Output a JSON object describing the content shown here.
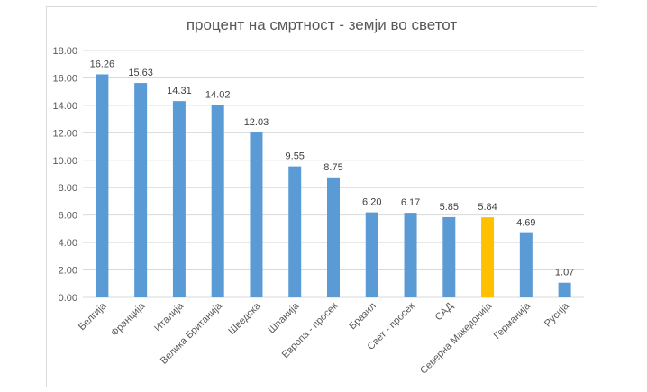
{
  "chart_data": {
    "type": "bar",
    "title": "процент  на смртност - земји во светот",
    "xlabel": "",
    "ylabel": "",
    "ylim": [
      0,
      18
    ],
    "ytick_step": 2,
    "ytick_labels": [
      "0.00",
      "2.00",
      "4.00",
      "6.00",
      "8.00",
      "10.00",
      "12.00",
      "14.00",
      "16.00",
      "18.00"
    ],
    "categories": [
      "Белгија",
      "Франција",
      "Италија",
      "Велика Британија",
      "Шведска",
      "Шпанија",
      "Европа - просек",
      "Бразил",
      "Свет - просек",
      "САД",
      "Северна Македонија",
      "Германија",
      "Русија"
    ],
    "values": [
      16.26,
      15.63,
      14.31,
      14.02,
      12.03,
      9.55,
      8.75,
      6.2,
      6.17,
      5.85,
      5.84,
      4.69,
      1.07
    ],
    "value_labels": [
      "16.26",
      "15.63",
      "14.31",
      "14.02",
      "12.03",
      "9.55",
      "8.75",
      "6.20",
      "6.17",
      "5.85",
      "5.84",
      "4.69",
      "1.07"
    ],
    "colors": {
      "default": "#5b9bd5",
      "highlight": "#ffc000",
      "highlight_category": "Северна Македонија",
      "gridline": "#d9d9d9"
    },
    "grid": true,
    "legend": "none"
  }
}
